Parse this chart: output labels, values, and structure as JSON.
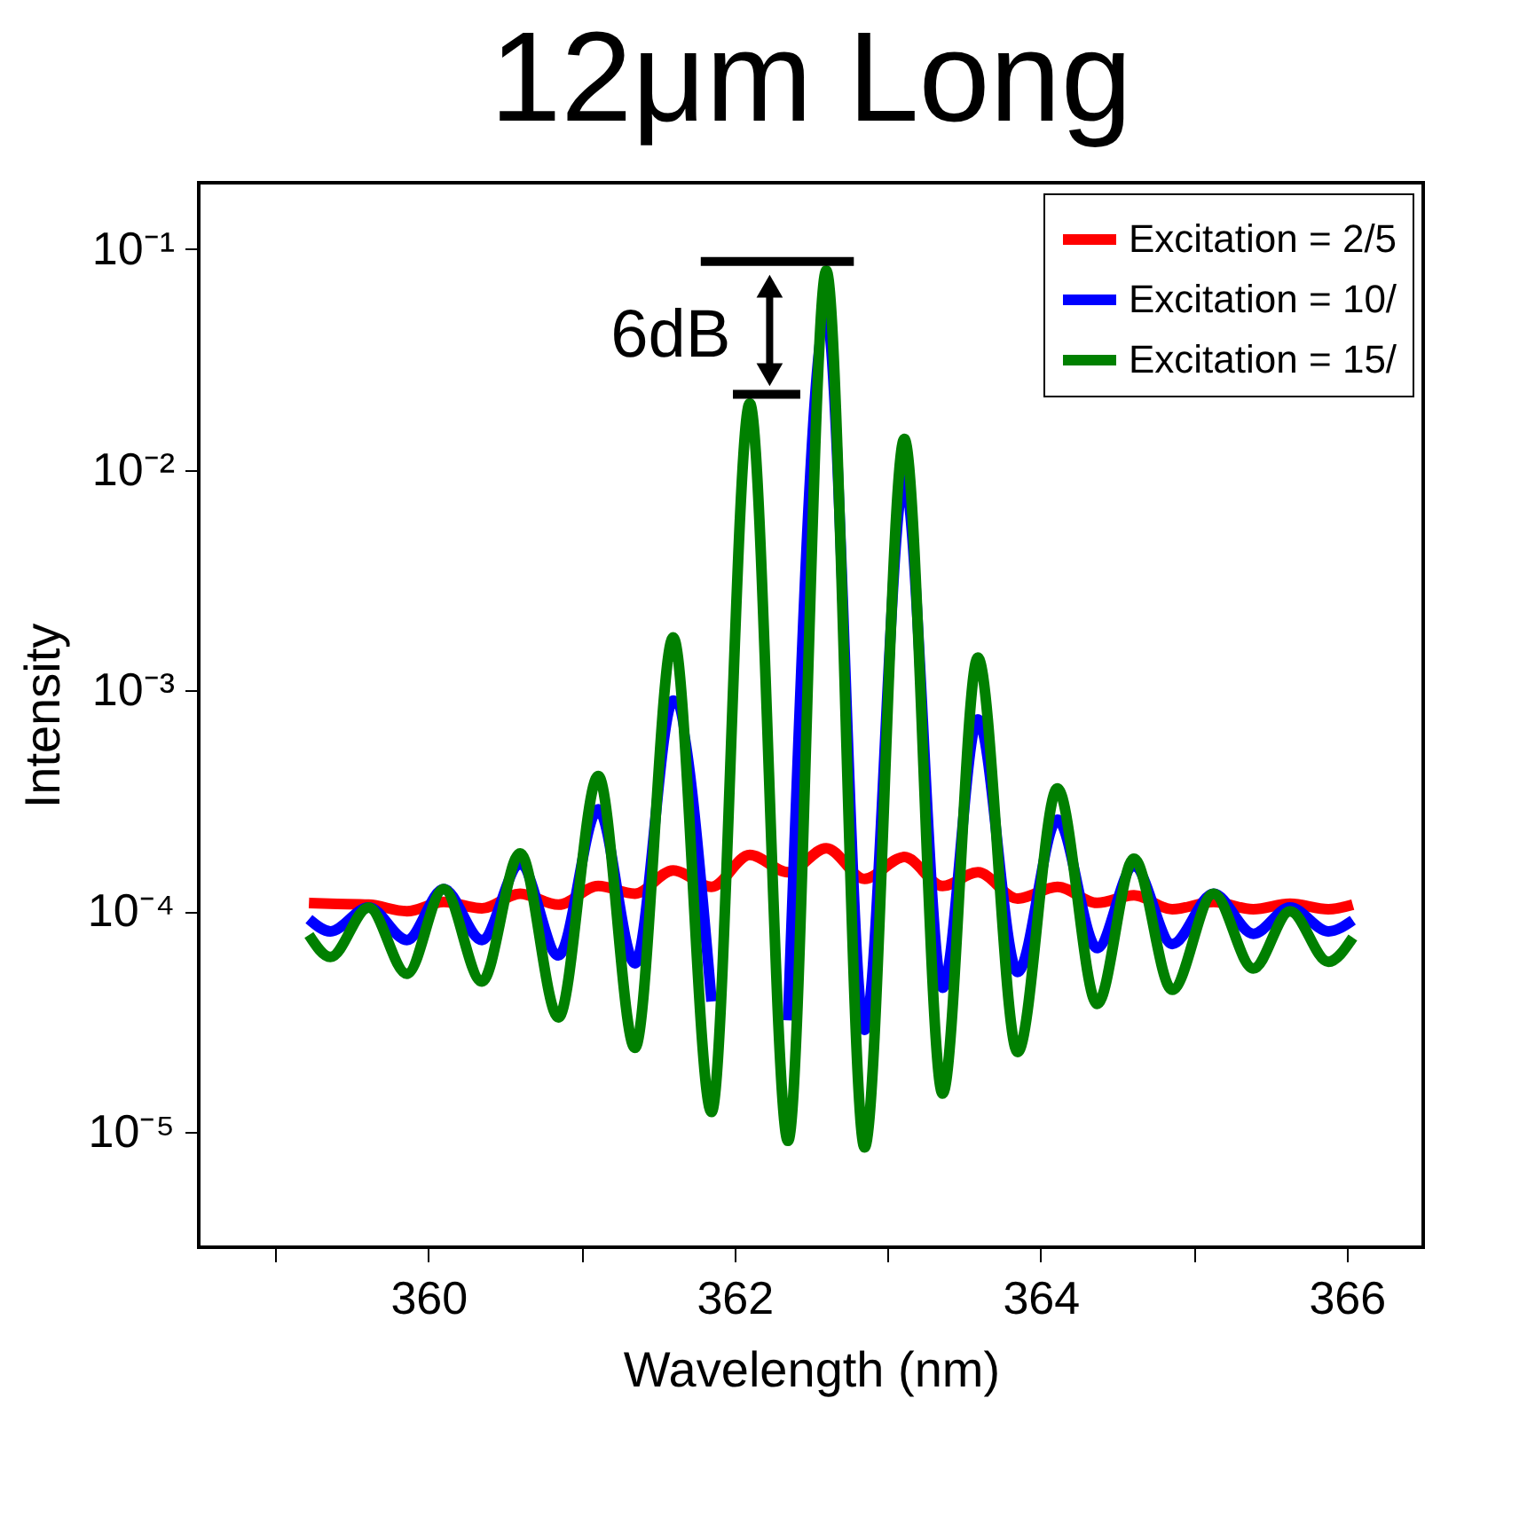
{
  "chart_data": {
    "type": "line",
    "title": "12μm Long",
    "xlabel": "Wavelength (nm)",
    "ylabel": "Intensity",
    "log": "y",
    "x": [
      359.22,
      359.36,
      359.61,
      359.86,
      360.1,
      360.35,
      360.6,
      360.85,
      361.11,
      361.35,
      361.6,
      361.85,
      362.1,
      362.35,
      362.6,
      362.85,
      363.11,
      363.36,
      363.59,
      363.85,
      364.11,
      364.37,
      364.61,
      364.86,
      365.13,
      365.39,
      365.63,
      365.88,
      366.04
    ],
    "series": [
      {
        "name": "Excitation = 2/5",
        "color": "#ff0000",
        "values": [
          0.000109,
          0.000108,
          0.000107,
          0.0001,
          0.00011,
          0.000103,
          0.00012,
          0.000107,
          0.00013,
          0.00012,
          0.000153,
          0.000129,
          0.00018,
          0.00015,
          0.000193,
          0.00014,
          0.000176,
          0.00013,
          0.00015,
          0.000114,
          0.000129,
          0.000109,
          0.000118,
          0.000102,
          0.00011,
          0.000102,
          0.000108,
          0.000102,
          0.000107
        ]
      },
      {
        "name": "Excitation = 10/",
        "color": "#0000ff",
        "values": [
          9.2e-05,
          8.1e-05,
          0.000104,
          7.4e-05,
          0.000126,
          7.4e-05,
          0.000163,
          6.3e-05,
          0.00029,
          5.8e-05,
          0.0009,
          3.9e-05,
          null,
          3.2e-05,
          0.05,
          2.9e-05,
          0.009,
          4.5e-05,
          0.00074,
          5.3e-05,
          0.00026,
          6.8e-05,
          0.00016,
          7.1e-05,
          0.00012,
          7.9e-05,
          0.000104,
          8.1e-05,
          9.1e-05
        ]
      },
      {
        "name": "Excitation = 15/",
        "color": "#008000",
        "values": [
          7.8e-05,
          6.2e-05,
          0.000104,
          5.2e-05,
          0.000126,
          4.8e-05,
          0.000183,
          3.3e-05,
          0.00041,
          2.4e-05,
          0.00174,
          1.23e-05,
          0.02,
          9.1e-06,
          0.08,
          8.5e-06,
          0.0138,
          1.49e-05,
          0.00141,
          2.3e-05,
          0.00036,
          3.8e-05,
          0.000173,
          4.4e-05,
          0.00012,
          5.5e-05,
          0.0001,
          5.9e-05,
          7.6e-05
        ]
      }
    ],
    "xlim": [
      358.5,
      366.5
    ],
    "xticks": [
      {
        "value": 359,
        "label": null
      },
      360,
      {
        "value": 361,
        "label": null
      },
      362,
      {
        "value": 363,
        "label": null
      },
      364,
      {
        "value": 365,
        "label": null
      },
      366
    ],
    "ylim": [
      3e-06,
      0.2
    ],
    "yticks": [
      {
        "value": 1e-05,
        "label": "10⁻⁵"
      },
      {
        "value": 0.0001,
        "label": "10⁻⁴"
      },
      {
        "value": 0.001,
        "label": "10⁻³"
      },
      {
        "value": 0.01,
        "label": "10⁻²"
      },
      {
        "value": 0.1,
        "label": "10⁻¹"
      }
    ],
    "annotations": [
      "6dB"
    ],
    "legend": "top right",
    "grid": false,
    "marker": "none",
    "line_style": "solid"
  }
}
